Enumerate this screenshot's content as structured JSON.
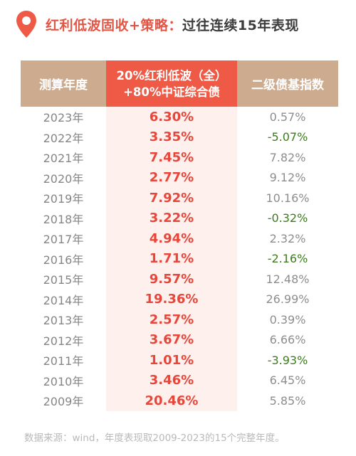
{
  "header": {
    "icon": "map-pin-icon",
    "title_highlight": "红利低波固收+策略：",
    "title_rest": "过往连续15年表现"
  },
  "table": {
    "headers": {
      "col1": "测算年度",
      "col2_line1": "20%红利低波（全）",
      "col2_line2": "+80%中证综合债",
      "col3": "二级债基指数"
    },
    "rows": [
      {
        "year": "2023年",
        "strategy": "6.30%",
        "bond_fund": "0.57%"
      },
      {
        "year": "2022年",
        "strategy": "3.35%",
        "bond_fund": "-5.07%"
      },
      {
        "year": "2021年",
        "strategy": "7.45%",
        "bond_fund": "7.82%"
      },
      {
        "year": "2020年",
        "strategy": "2.77%",
        "bond_fund": "9.12%"
      },
      {
        "year": "2019年",
        "strategy": "7.92%",
        "bond_fund": "10.16%"
      },
      {
        "year": "2018年",
        "strategy": "3.22%",
        "bond_fund": "-0.32%"
      },
      {
        "year": "2017年",
        "strategy": "4.94%",
        "bond_fund": "2.32%"
      },
      {
        "year": "2016年",
        "strategy": "1.71%",
        "bond_fund": "-2.16%"
      },
      {
        "year": "2015年",
        "strategy": "9.57%",
        "bond_fund": "12.48%"
      },
      {
        "year": "2014年",
        "strategy": "19.36%",
        "bond_fund": "26.99%"
      },
      {
        "year": "2013年",
        "strategy": "2.57%",
        "bond_fund": "0.39%"
      },
      {
        "year": "2012年",
        "strategy": "3.67%",
        "bond_fund": "6.66%"
      },
      {
        "year": "2011年",
        "strategy": "1.01%",
        "bond_fund": "-3.93%"
      },
      {
        "year": "2010年",
        "strategy": "3.46%",
        "bond_fund": "6.45%"
      },
      {
        "year": "2009年",
        "strategy": "20.46%",
        "bond_fund": "5.85%"
      }
    ]
  },
  "footnote": "数据来源：wind，年度表现取2009-2023的15个完整年度。",
  "colors": {
    "accent": "#ee5a45",
    "header_tan": "#ccab8e",
    "negative_green": "#3c7b1e",
    "strategy_red": "#e8463a"
  }
}
